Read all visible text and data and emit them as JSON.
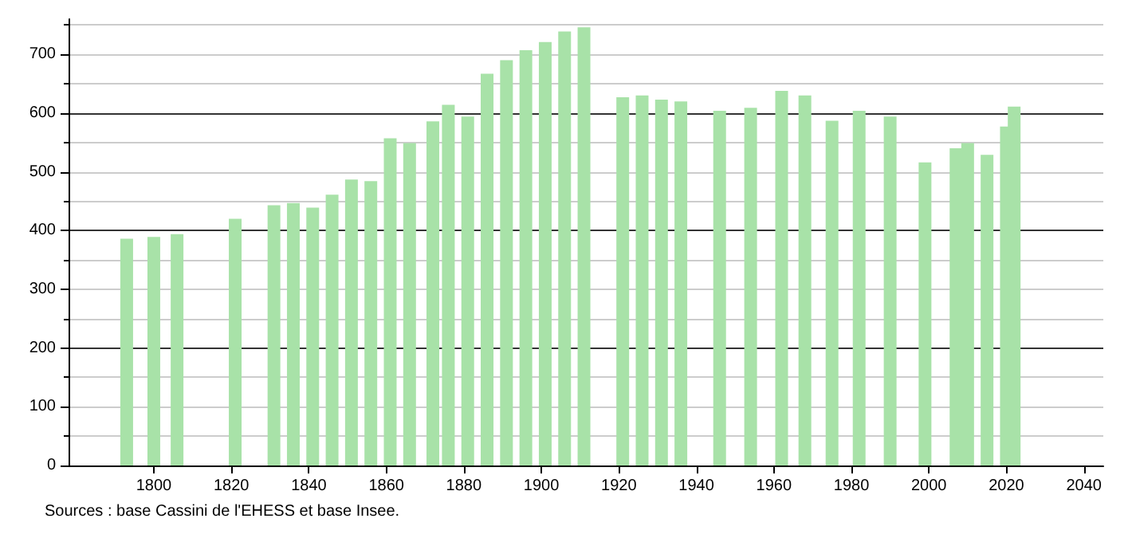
{
  "chart_data": {
    "type": "bar",
    "x": [
      1793,
      1800,
      1806,
      1821,
      1831,
      1836,
      1841,
      1846,
      1851,
      1856,
      1861,
      1866,
      1872,
      1876,
      1881,
      1886,
      1891,
      1896,
      1901,
      1906,
      1911,
      1921,
      1926,
      1931,
      1936,
      1946,
      1954,
      1962,
      1968,
      1975,
      1982,
      1990,
      1999,
      2007,
      2010,
      2015,
      2020,
      2022
    ],
    "values": [
      386,
      389,
      394,
      420,
      443,
      447,
      439,
      461,
      487,
      484,
      557,
      549,
      586,
      614,
      594,
      667,
      690,
      707,
      721,
      739,
      746,
      627,
      630,
      623,
      620,
      604,
      609,
      638,
      630,
      587,
      604,
      594,
      516,
      540,
      549,
      529,
      577,
      611
    ],
    "color": "#a8e2a8",
    "xlim": [
      1778,
      2045
    ],
    "xticks": [
      1800,
      1820,
      1840,
      1860,
      1880,
      1900,
      1920,
      1940,
      1960,
      1980,
      2000,
      2020,
      2040
    ],
    "ylim": [
      0,
      760
    ],
    "yticks": [
      0,
      100,
      200,
      300,
      400,
      500,
      600,
      700
    ],
    "grid": "y",
    "annotations": [
      "Sources : base Cassini de l'EHESS et base Insee."
    ]
  }
}
